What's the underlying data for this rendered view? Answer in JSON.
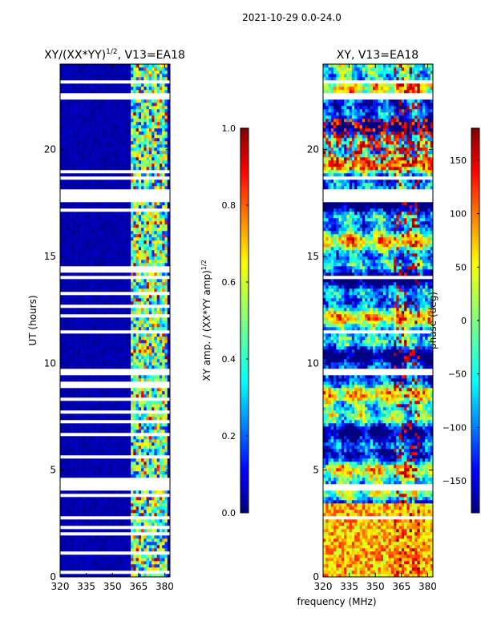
{
  "figure": {
    "suptitle": "2021-10-29 0.0-24.0",
    "xlabel_shared": "frequency (MHz)"
  },
  "chart_data": [
    {
      "type": "heatmap",
      "title": "XY/(XX*YY)",
      "title_superscript": "1/2",
      "title_suffix": ", V13=EA18",
      "xlabel": "",
      "ylabel": "UT (hours)",
      "xlim": [
        320,
        383
      ],
      "ylim": [
        0,
        24
      ],
      "xticks": [
        320,
        335,
        350,
        365,
        380
      ],
      "yticks": [
        0,
        5,
        10,
        15,
        20
      ],
      "xtick_labels": [
        "320",
        "335",
        "350",
        "365",
        "380"
      ],
      "ytick_labels": [
        "0",
        "5",
        "10",
        "15",
        "20"
      ],
      "colorbar": {
        "label": "XY amp. / (XX*YY amp)",
        "label_superscript": "1/2",
        "range": [
          0.0,
          1.0
        ],
        "ticks": [
          0.0,
          0.2,
          0.4,
          0.6,
          0.8,
          1.0
        ],
        "tick_labels": [
          "0.0",
          "0.2",
          "0.4",
          "0.6",
          "0.8",
          "1.0"
        ],
        "colormap": "jet"
      },
      "description_values": {
        "background_level": 0.02,
        "rfi_band_mhz": [
          360,
          381
        ],
        "rfi_band_level_range": [
          0.3,
          0.7
        ]
      },
      "gaps_hours": [
        [
          0.2,
          0.3
        ],
        [
          0.7,
          0.8
        ],
        [
          1.1,
          1.2
        ],
        [
          1.6,
          1.7
        ],
        [
          2.0,
          2.1
        ],
        [
          2.3,
          2.4
        ],
        [
          2.7,
          2.8
        ],
        [
          3.4,
          3.5
        ],
        [
          3.8,
          3.9
        ],
        [
          4.1,
          4.6
        ],
        [
          5.5,
          5.7
        ],
        [
          6.1,
          6.2
        ],
        [
          6.6,
          6.7
        ],
        [
          7.2,
          7.3
        ],
        [
          7.7,
          7.8
        ],
        [
          8.3,
          8.4
        ],
        [
          8.8,
          9.1
        ],
        [
          9.5,
          9.8
        ],
        [
          10.3,
          10.4
        ],
        [
          10.6,
          10.7
        ],
        [
          11.4,
          11.5
        ],
        [
          11.8,
          11.9
        ],
        [
          12.2,
          12.3
        ],
        [
          12.6,
          12.7
        ],
        [
          13.2,
          13.3
        ],
        [
          13.6,
          13.7
        ],
        [
          14.0,
          14.1
        ],
        [
          14.3,
          14.5
        ],
        [
          14.8,
          14.9
        ],
        [
          15.4,
          15.5
        ],
        [
          16.0,
          16.1
        ],
        [
          16.6,
          16.7
        ],
        [
          17.1,
          17.2
        ],
        [
          17.6,
          18.2
        ],
        [
          18.6,
          18.7
        ],
        [
          18.9,
          19.0
        ],
        [
          19.3,
          19.4
        ],
        [
          22.3,
          22.7
        ],
        [
          23.1,
          23.2
        ],
        [
          23.5,
          23.6
        ]
      ]
    },
    {
      "type": "heatmap",
      "title": "XY, V13=EA18",
      "xlabel": "frequency (MHz)",
      "ylabel": "",
      "xlim": [
        320,
        383
      ],
      "ylim": [
        0,
        24
      ],
      "xticks": [
        320,
        335,
        350,
        365,
        380
      ],
      "yticks": [
        0,
        5,
        10,
        15,
        20
      ],
      "xtick_labels": [
        "320",
        "335",
        "350",
        "365",
        "380"
      ],
      "ytick_labels": [
        "0",
        "5",
        "10",
        "15",
        "20"
      ],
      "colorbar": {
        "label": "phase (deg)",
        "range": [
          -180,
          180
        ],
        "ticks": [
          -150,
          -100,
          -50,
          0,
          50,
          100,
          150
        ],
        "tick_labels": [
          "−150",
          "−100",
          "−50",
          "0",
          "50",
          "100",
          "150"
        ],
        "colormap": "jet"
      },
      "gaps_hours": [
        [
          0.7,
          0.8
        ],
        [
          1.6,
          1.7
        ],
        [
          2.7,
          2.8
        ],
        [
          4.1,
          4.3
        ],
        [
          5.5,
          5.6
        ],
        [
          9.5,
          9.8
        ],
        [
          10.3,
          10.4
        ],
        [
          11.4,
          11.5
        ],
        [
          13.6,
          13.7
        ],
        [
          14.0,
          14.1
        ],
        [
          14.8,
          14.9
        ],
        [
          17.6,
          18.2
        ],
        [
          18.6,
          18.8
        ],
        [
          22.3,
          22.6
        ],
        [
          23.1,
          23.2
        ]
      ]
    }
  ]
}
